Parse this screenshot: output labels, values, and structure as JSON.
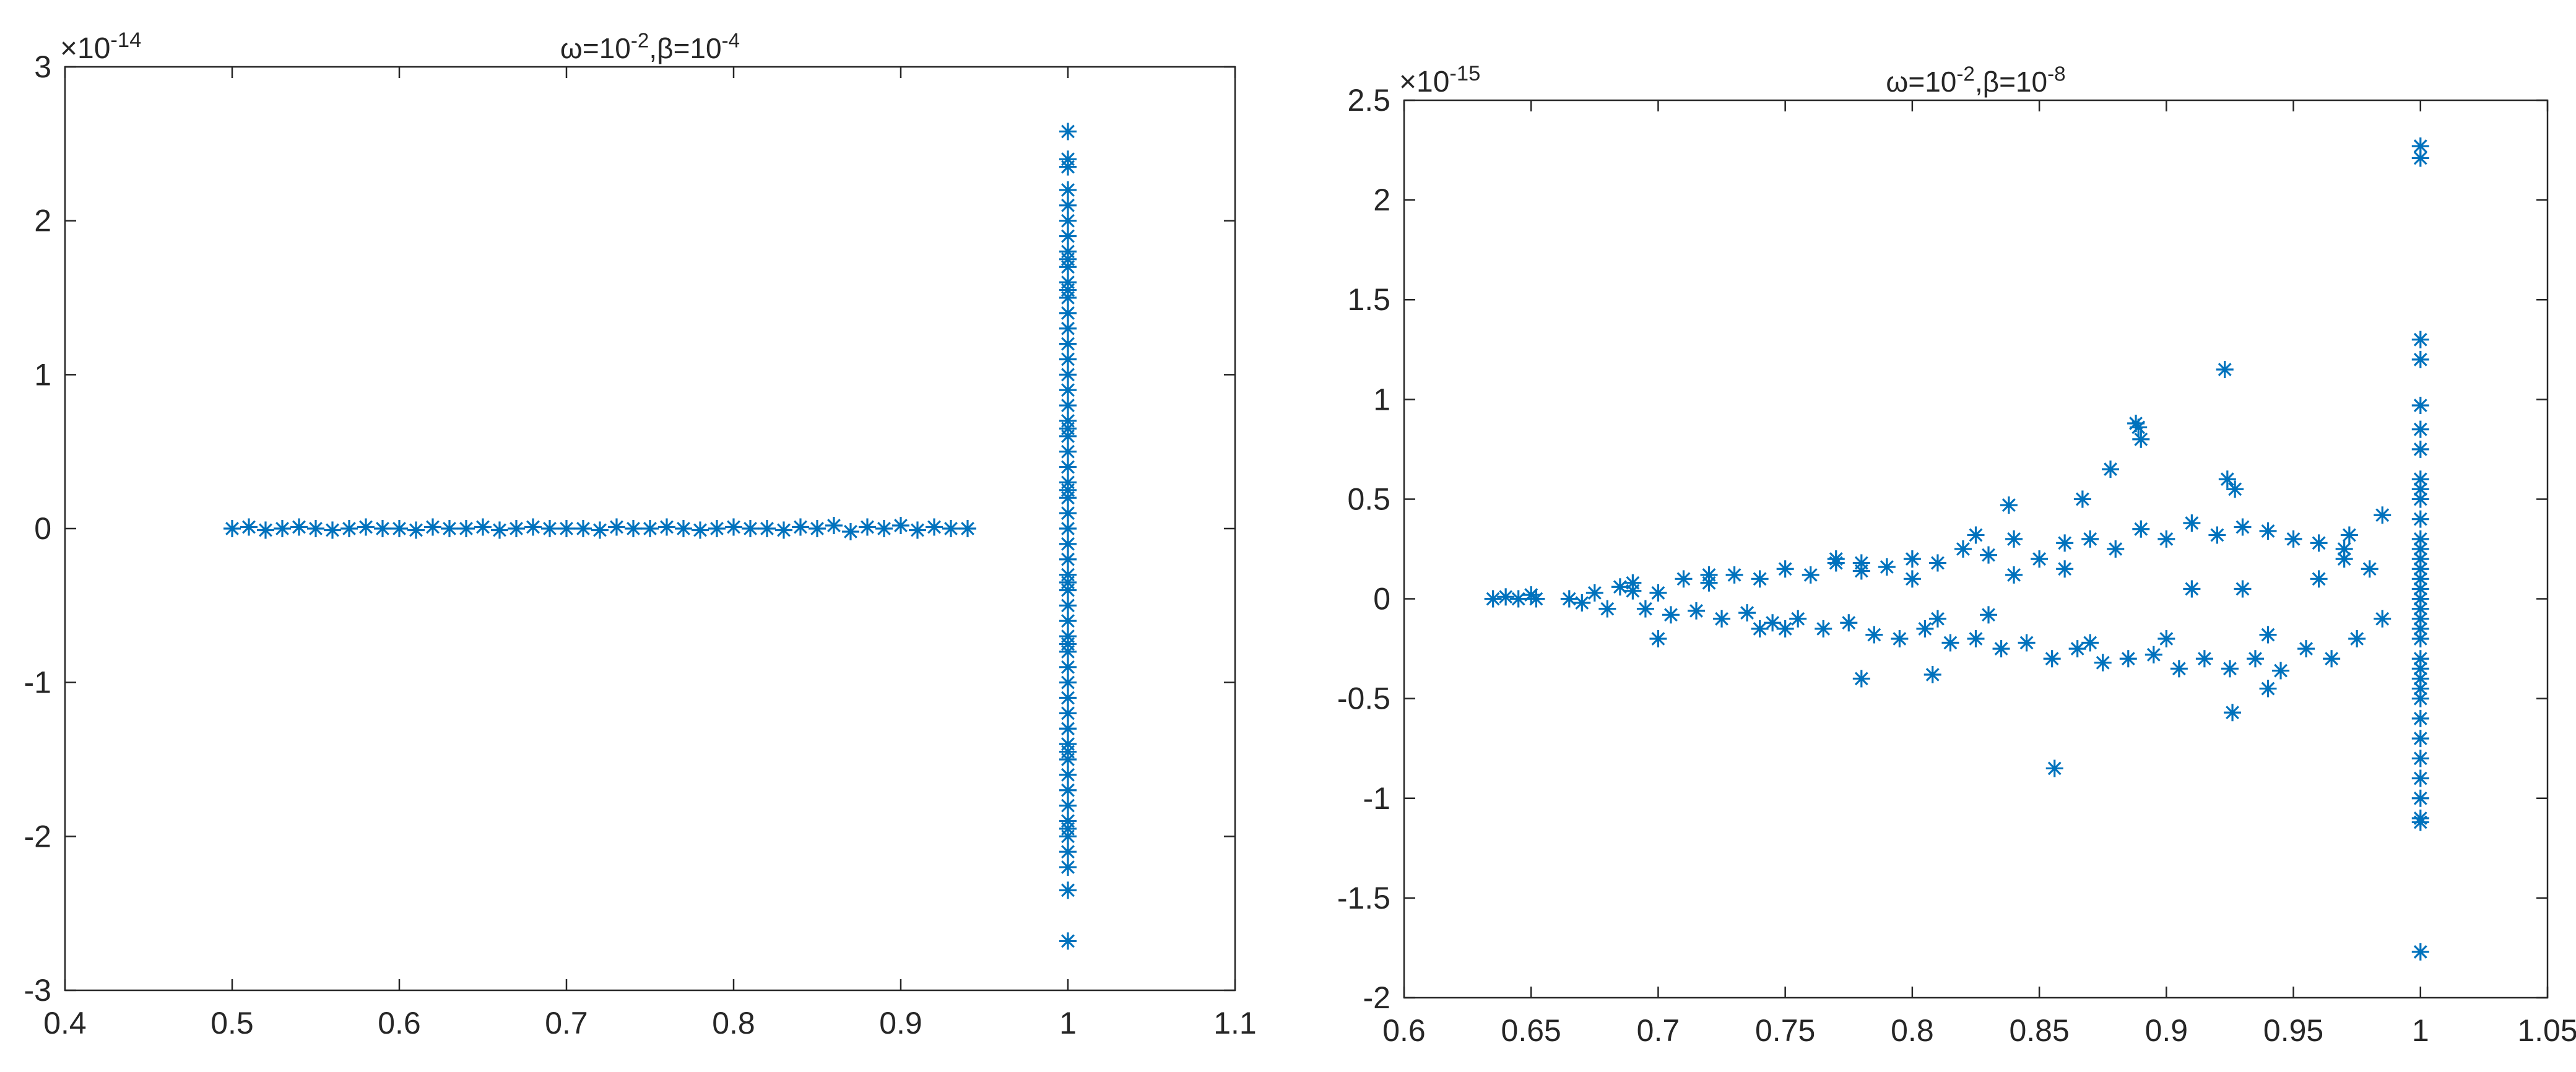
{
  "marker_color": "#0072bd",
  "axis_color": "#262626",
  "chart_data": [
    {
      "type": "scatter",
      "marker": "asterisk",
      "title": {
        "base1": "ω=10",
        "exp1": "-2",
        "base2": ",β=10",
        "exp2": "-4"
      },
      "multiplier": {
        "base": "×10",
        "exp": "-14"
      },
      "xlim": [
        0.4,
        1.1
      ],
      "ylim": [
        -3,
        3
      ],
      "xticks": [
        0.4,
        0.5,
        0.6,
        0.7,
        0.8,
        0.9,
        1,
        1.1
      ],
      "xtick_labels": [
        "0.4",
        "0.5",
        "0.6",
        "0.7",
        "0.8",
        "0.9",
        "1",
        "1.1"
      ],
      "yticks": [
        -3,
        -2,
        -1,
        0,
        1,
        2,
        3
      ],
      "ytick_labels": [
        "-3",
        "-2",
        "-1",
        "0",
        "1",
        "2",
        "3"
      ],
      "grid": false,
      "series": [
        {
          "x": [
            0.5,
            0.51,
            0.52,
            0.53,
            0.54,
            0.55,
            0.56,
            0.57,
            0.58,
            0.59,
            0.6,
            0.61,
            0.62,
            0.63,
            0.64,
            0.65,
            0.66,
            0.67,
            0.68,
            0.69,
            0.7,
            0.71,
            0.72,
            0.73,
            0.74,
            0.75,
            0.76,
            0.77,
            0.78,
            0.79,
            0.8,
            0.81,
            0.82,
            0.83,
            0.84,
            0.85,
            0.86,
            0.87,
            0.88,
            0.89,
            0.9,
            0.91,
            0.92,
            0.93,
            0.94,
            1,
            1,
            1,
            1,
            1,
            1,
            1,
            1,
            1,
            1,
            1,
            1,
            1,
            1,
            1,
            1,
            1,
            1,
            1,
            1,
            1,
            1,
            1,
            1,
            1,
            1,
            1,
            1,
            1,
            1,
            1,
            1,
            1,
            1,
            1,
            1,
            1,
            1,
            1,
            1,
            1,
            1,
            1,
            1,
            1,
            1,
            1,
            1,
            1,
            1,
            1,
            1,
            1,
            1,
            1,
            1,
            1,
            1
          ],
          "y": [
            0,
            0.01,
            -0.01,
            0,
            0.01,
            0,
            -0.01,
            0,
            0.01,
            0,
            0,
            -0.01,
            0.01,
            0,
            0,
            0.01,
            -0.01,
            0,
            0.01,
            0,
            0,
            0,
            -0.01,
            0.01,
            0,
            0,
            0.01,
            0,
            -0.01,
            0,
            0.01,
            0,
            0,
            -0.01,
            0.01,
            0,
            0.02,
            -0.02,
            0.01,
            0,
            0.02,
            -0.01,
            0.01,
            0,
            0,
            2.58,
            2.4,
            2.35,
            2.2,
            2.1,
            2.0,
            1.9,
            1.8,
            1.7,
            1.6,
            1.5,
            1.4,
            1.3,
            1.2,
            1.1,
            1.0,
            0.9,
            0.8,
            0.7,
            0.6,
            0.5,
            0.4,
            0.3,
            0.2,
            0.1,
            0,
            -0.1,
            -0.2,
            -0.3,
            -0.4,
            -0.5,
            -0.6,
            -0.7,
            -0.8,
            -0.9,
            -1.0,
            -1.1,
            -1.2,
            -1.3,
            -1.4,
            -1.5,
            -1.6,
            -1.7,
            -1.8,
            -1.9,
            -2.0,
            -2.1,
            -2.2,
            -2.35,
            -2.68,
            1.55,
            -1.45,
            0.25,
            -0.35,
            1.75,
            -1.95,
            0.65,
            -0.75
          ]
        }
      ]
    },
    {
      "type": "scatter",
      "marker": "asterisk",
      "title": {
        "base1": "ω=10",
        "exp1": "-2",
        "base2": ",β=10",
        "exp2": "-8"
      },
      "multiplier": {
        "base": "×10",
        "exp": "-15"
      },
      "xlim": [
        0.6,
        1.05
      ],
      "ylim": [
        -2,
        2.5
      ],
      "xticks": [
        0.6,
        0.65,
        0.7,
        0.75,
        0.8,
        0.85,
        0.9,
        0.95,
        1,
        1.05
      ],
      "xtick_labels": [
        "0.6",
        "0.65",
        "0.7",
        "0.75",
        "0.8",
        "0.85",
        "0.9",
        "0.95",
        "1",
        "1.05"
      ],
      "yticks": [
        -2,
        -1.5,
        -1,
        -0.5,
        0,
        0.5,
        1,
        1.5,
        2,
        2.5
      ],
      "ytick_labels": [
        "-2",
        "-1.5",
        "-1",
        "-0.5",
        "0",
        "0.5",
        "1",
        "1.5",
        "2",
        "2.5"
      ],
      "grid": false,
      "series": [
        {
          "x": [
            0.635,
            0.64,
            0.645,
            0.65,
            0.652,
            0.665,
            0.67,
            0.675,
            0.68,
            0.685,
            0.69,
            0.695,
            0.7,
            0.705,
            0.71,
            0.715,
            0.72,
            0.725,
            0.73,
            0.735,
            0.74,
            0.745,
            0.75,
            0.755,
            0.76,
            0.765,
            0.77,
            0.775,
            0.78,
            0.785,
            0.79,
            0.795,
            0.8,
            0.805,
            0.81,
            0.815,
            0.82,
            0.825,
            0.83,
            0.835,
            0.84,
            0.845,
            0.85,
            0.855,
            0.86,
            0.865,
            0.87,
            0.875,
            0.88,
            0.885,
            0.89,
            0.895,
            0.9,
            0.905,
            0.91,
            0.915,
            0.92,
            0.925,
            0.93,
            0.935,
            0.94,
            0.945,
            0.95,
            0.955,
            0.96,
            0.965,
            0.97,
            0.975,
            0.98,
            0.985,
            0.69,
            0.72,
            0.75,
            0.78,
            0.8,
            0.83,
            0.86,
            0.9,
            0.93,
            0.96,
            0.7,
            0.74,
            0.77,
            0.81,
            0.84,
            0.87,
            0.91,
            0.94,
            0.97,
            0.78,
            0.808,
            0.825,
            0.838,
            0.856,
            0.867,
            0.878,
            0.888,
            0.889,
            0.89,
            0.923,
            0.924,
            0.926,
            0.927,
            0.94,
            0.972,
            0.985,
            1,
            1,
            1,
            1,
            1,
            1,
            1,
            1,
            1,
            1,
            1,
            1,
            1,
            1,
            1,
            1,
            1,
            1,
            1,
            1,
            1,
            1,
            1,
            1,
            1,
            1,
            1,
            1,
            1,
            1,
            1,
            1,
            1,
            1,
            1
          ],
          "y": [
            0,
            0.01,
            0,
            0.02,
            0,
            0,
            -0.02,
            0.03,
            -0.05,
            0.06,
            0.04,
            -0.05,
            0.03,
            -0.08,
            0.1,
            -0.06,
            0.08,
            -0.1,
            0.12,
            -0.07,
            0.1,
            -0.12,
            0.15,
            -0.1,
            0.12,
            -0.15,
            0.18,
            -0.12,
            0.14,
            -0.18,
            0.16,
            -0.2,
            0.2,
            -0.15,
            0.18,
            -0.22,
            0.25,
            -0.2,
            0.22,
            -0.25,
            0.3,
            -0.22,
            0.2,
            -0.3,
            0.28,
            -0.25,
            0.3,
            -0.32,
            0.25,
            -0.3,
            0.35,
            -0.28,
            0.3,
            -0.35,
            0.38,
            -0.3,
            0.32,
            -0.35,
            0.36,
            -0.3,
            0.34,
            -0.36,
            0.3,
            -0.25,
            0.28,
            -0.3,
            0.25,
            -0.2,
            0.15,
            -0.1,
            0.08,
            0.12,
            -0.15,
            0.18,
            0.1,
            -0.08,
            0.15,
            -0.2,
            0.05,
            0.1,
            -0.2,
            -0.15,
            0.2,
            -0.1,
            0.12,
            -0.22,
            0.05,
            -0.18,
            0.2,
            -0.4,
            -0.38,
            0.32,
            0.47,
            -0.85,
            0.5,
            0.65,
            0.88,
            0.86,
            0.8,
            1.15,
            0.6,
            -0.57,
            0.55,
            -0.45,
            0.32,
            0.42,
            2.27,
            2.21,
            1.3,
            1.2,
            0.97,
            0.85,
            0.75,
            0.6,
            0.5,
            0.4,
            0.3,
            0.2,
            0.1,
            0,
            -0.1,
            -0.2,
            -0.3,
            -0.4,
            -0.5,
            -0.6,
            -0.7,
            -0.8,
            -0.9,
            -1.0,
            -1.1,
            -1.12,
            -1.77,
            0.55,
            -0.45,
            0.25,
            -0.35,
            0.05,
            -0.05,
            0.15,
            -0.15
          ]
        }
      ]
    }
  ]
}
